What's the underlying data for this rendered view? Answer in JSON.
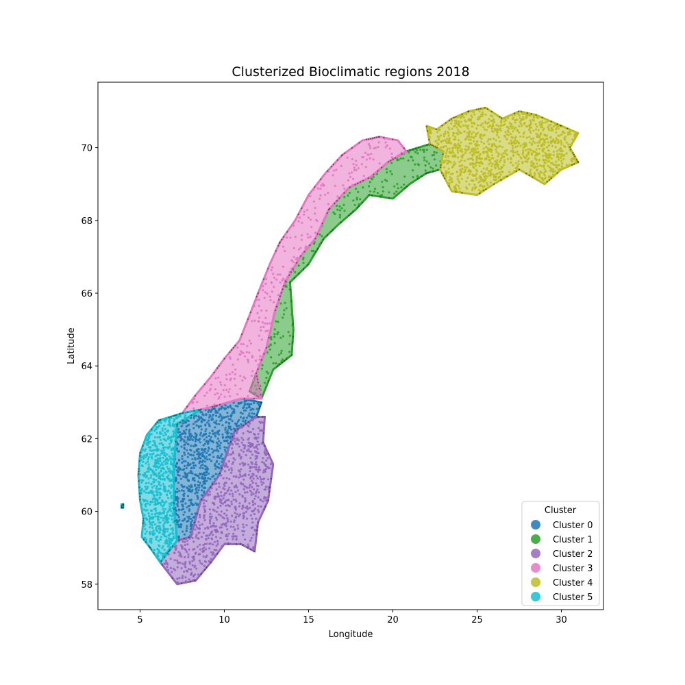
{
  "chart_data": {
    "type": "scatter",
    "title": "Clusterized Bioclimatic regions 2018",
    "xlabel": "Longitude",
    "ylabel": "Latitude",
    "xlim": [
      2.5,
      32.5
    ],
    "ylim": [
      57.3,
      71.8
    ],
    "xticks": [
      5,
      10,
      15,
      20,
      25,
      30
    ],
    "yticks": [
      58,
      60,
      62,
      64,
      66,
      68,
      70
    ],
    "grid": false,
    "legend": {
      "title": "Cluster",
      "placement": "lower-right"
    },
    "series": [
      {
        "name": "Cluster 0",
        "color": "#1f77b4",
        "regions": [
          [
            [
              7.2,
              59.2
            ],
            [
              8.0,
              59.3
            ],
            [
              8.6,
              60.3
            ],
            [
              9.7,
              61.0
            ],
            [
              10.6,
              62.2
            ],
            [
              11.9,
              62.6
            ],
            [
              12.2,
              63.0
            ],
            [
              11.0,
              63.1
            ],
            [
              9.5,
              62.9
            ],
            [
              8.6,
              62.8
            ],
            [
              7.2,
              62.4
            ],
            [
              7.0,
              61.2
            ],
            [
              7.0,
              60.1
            ]
          ]
        ]
      },
      {
        "name": "Cluster 1",
        "color": "#2ca02c",
        "regions": [
          [
            [
              12.2,
              63.1
            ],
            [
              12.9,
              63.9
            ],
            [
              14.0,
              64.3
            ],
            [
              14.1,
              65.0
            ],
            [
              13.9,
              66.3
            ],
            [
              15.0,
              66.8
            ],
            [
              15.9,
              67.5
            ],
            [
              16.8,
              67.9
            ],
            [
              17.8,
              68.3
            ],
            [
              18.6,
              68.7
            ],
            [
              20.0,
              68.6
            ],
            [
              21.0,
              69.0
            ],
            [
              22.0,
              69.3
            ],
            [
              22.8,
              69.4
            ],
            [
              23.0,
              69.9
            ],
            [
              22.2,
              70.1
            ],
            [
              20.8,
              69.9
            ],
            [
              19.7,
              69.6
            ],
            [
              18.7,
              69.2
            ],
            [
              17.4,
              68.9
            ],
            [
              16.2,
              68.3
            ],
            [
              15.4,
              67.5
            ],
            [
              14.5,
              67.0
            ],
            [
              13.6,
              66.3
            ],
            [
              13.0,
              65.5
            ],
            [
              12.5,
              64.5
            ],
            [
              11.9,
              63.8
            ],
            [
              11.5,
              63.3
            ]
          ]
        ]
      },
      {
        "name": "Cluster 2",
        "color": "#9467bd",
        "regions": [
          [
            [
              6.2,
              58.6
            ],
            [
              7.2,
              58.0
            ],
            [
              8.3,
              58.1
            ],
            [
              9.2,
              58.6
            ],
            [
              10.0,
              59.1
            ],
            [
              11.0,
              59.1
            ],
            [
              11.8,
              58.9
            ],
            [
              12.0,
              59.7
            ],
            [
              12.6,
              60.3
            ],
            [
              12.9,
              61.3
            ],
            [
              12.3,
              61.9
            ],
            [
              12.4,
              62.6
            ],
            [
              11.9,
              62.6
            ],
            [
              10.6,
              62.2
            ],
            [
              9.7,
              61.0
            ],
            [
              8.6,
              60.3
            ],
            [
              8.0,
              59.3
            ],
            [
              7.2,
              59.2
            ],
            [
              6.7,
              58.9
            ]
          ]
        ]
      },
      {
        "name": "Cluster 3",
        "color": "#e377c2",
        "regions": [
          [
            [
              7.5,
              62.7
            ],
            [
              8.3,
              63.2
            ],
            [
              9.2,
              63.7
            ],
            [
              10.0,
              64.2
            ],
            [
              10.9,
              64.7
            ],
            [
              11.5,
              65.4
            ],
            [
              12.0,
              66.0
            ],
            [
              12.7,
              66.8
            ],
            [
              13.3,
              67.4
            ],
            [
              14.2,
              68.0
            ],
            [
              15.0,
              68.7
            ],
            [
              16.0,
              69.3
            ],
            [
              17.0,
              69.8
            ],
            [
              18.2,
              70.2
            ],
            [
              19.2,
              70.3
            ],
            [
              20.3,
              70.2
            ],
            [
              20.8,
              69.9
            ],
            [
              19.7,
              69.6
            ],
            [
              18.7,
              69.2
            ],
            [
              17.4,
              68.9
            ],
            [
              16.2,
              68.3
            ],
            [
              15.4,
              67.5
            ],
            [
              14.5,
              67.0
            ],
            [
              13.6,
              66.3
            ],
            [
              13.0,
              65.5
            ],
            [
              12.5,
              64.5
            ],
            [
              11.9,
              63.8
            ],
            [
              12.2,
              63.1
            ],
            [
              11.0,
              63.1
            ],
            [
              9.5,
              62.9
            ],
            [
              8.6,
              62.8
            ]
          ]
        ]
      },
      {
        "name": "Cluster 4",
        "color": "#bcbd22",
        "regions": [
          [
            [
              22.0,
              70.6
            ],
            [
              22.6,
              70.5
            ],
            [
              23.5,
              70.8
            ],
            [
              24.5,
              71.0
            ],
            [
              25.5,
              71.1
            ],
            [
              26.5,
              70.8
            ],
            [
              27.5,
              71.0
            ],
            [
              28.5,
              70.9
            ],
            [
              30.0,
              70.6
            ],
            [
              31.0,
              70.4
            ],
            [
              30.5,
              70.0
            ],
            [
              31.0,
              69.6
            ],
            [
              30.0,
              69.4
            ],
            [
              29.0,
              69.0
            ],
            [
              27.5,
              69.4
            ],
            [
              26.0,
              69.0
            ],
            [
              25.0,
              68.7
            ],
            [
              23.5,
              68.8
            ],
            [
              22.8,
              69.4
            ],
            [
              23.0,
              69.9
            ],
            [
              22.2,
              70.1
            ]
          ]
        ]
      },
      {
        "name": "Cluster 5",
        "color": "#17becf",
        "regions": [
          [
            [
              5.1,
              59.3
            ],
            [
              5.6,
              59.0
            ],
            [
              6.2,
              58.6
            ],
            [
              6.7,
              58.9
            ],
            [
              7.2,
              59.2
            ],
            [
              7.0,
              60.1
            ],
            [
              7.0,
              61.2
            ],
            [
              7.2,
              62.4
            ],
            [
              8.6,
              62.8
            ],
            [
              7.5,
              62.7
            ],
            [
              6.8,
              62.6
            ],
            [
              6.1,
              62.5
            ],
            [
              5.4,
              62.1
            ],
            [
              5.0,
              61.6
            ],
            [
              4.9,
              61.0
            ],
            [
              5.0,
              60.3
            ],
            [
              5.2,
              59.8
            ]
          ],
          [
            [
              3.9,
              60.2
            ],
            [
              4.0,
              60.2
            ],
            [
              4.0,
              60.1
            ],
            [
              3.9,
              60.1
            ]
          ]
        ]
      }
    ]
  }
}
